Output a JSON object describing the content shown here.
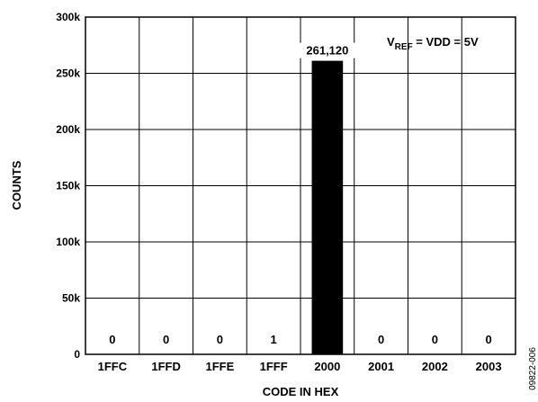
{
  "chart_data": {
    "type": "bar",
    "categories": [
      "1FFC",
      "1FFD",
      "1FFE",
      "1FFF",
      "2000",
      "2001",
      "2002",
      "2003"
    ],
    "values": [
      0,
      0,
      0,
      1,
      261120,
      0,
      0,
      0
    ],
    "data_labels": [
      "0",
      "0",
      "0",
      "1",
      "261,120",
      "0",
      "0",
      "0"
    ],
    "xlabel": "CODE IN HEX",
    "ylabel": "COUNTS",
    "ylim": [
      0,
      300000
    ],
    "yticks": [
      0,
      50000,
      100000,
      150000,
      200000,
      250000,
      300000
    ],
    "ytick_labels": [
      "0",
      "50k",
      "100k",
      "150k",
      "200k",
      "250k",
      "300k"
    ],
    "annotation": {
      "prefix": "V",
      "subscript": "REF",
      "suffix": " = VDD = 5V"
    },
    "grid": true,
    "figure_id": "09822-006",
    "colors": {
      "bar": "#000000",
      "grid": "#000000",
      "background": "#ffffff"
    }
  }
}
